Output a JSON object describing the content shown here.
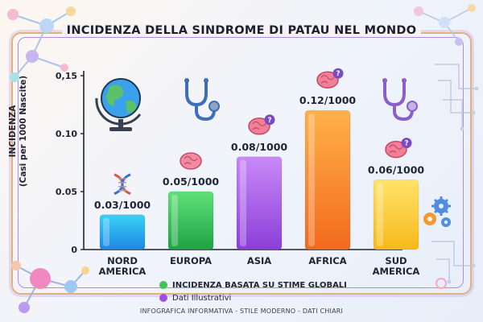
{
  "page": {
    "title": "INCIDENZA DELLA SINDROME DI PATAU NEL MONDO",
    "footer": "INFOGRAFICA INFORMATIVA - STILE MODERNO - DATI CHIARI"
  },
  "legend": {
    "items": [
      {
        "label": "INCIDENZA BASATA SU STIME GLOBALI",
        "color": "#3fc45a"
      },
      {
        "label": "Dati Illustrativi",
        "color": "#a24fe0"
      }
    ]
  },
  "chart_data": {
    "type": "bar",
    "title": "INCIDENZA DELLA SINDROME DI PATAU NEL MONDO",
    "ylabel": "INCIDENZA",
    "ylabel_sub": "(Casi per 1000 Nascite)",
    "xlabel": "",
    "ylim": [
      0,
      0.15
    ],
    "yticks": [
      0,
      0.05,
      0.1,
      0.15
    ],
    "ytick_labels": [
      "0",
      "0.05",
      "0.10",
      "0,15"
    ],
    "grid": false,
    "categories": [
      {
        "line1": "NORD",
        "line2": "AMERICA"
      },
      {
        "line1": "EUROPA",
        "line2": ""
      },
      {
        "line1": "ASIA",
        "line2": ""
      },
      {
        "line1": "AFRICA",
        "line2": ""
      },
      {
        "line1": "SUD",
        "line2": "AMERICA"
      }
    ],
    "values": [
      0.03,
      0.05,
      0.08,
      0.12,
      0.06
    ],
    "data_labels": [
      "0.03/1000",
      "0.05/1000",
      "0.08/1000",
      "0.12/1000",
      "0.06/1000"
    ],
    "bar_colors": [
      [
        "#3ad3f5",
        "#1c86e6"
      ],
      [
        "#5fe07a",
        "#1fa343"
      ],
      [
        "#c989f7",
        "#8b3fd9"
      ],
      [
        "#ffb04a",
        "#f36a1c"
      ],
      [
        "#ffe36a",
        "#f7b91a"
      ]
    ],
    "icons": [
      "dna-icon",
      "brain-icon",
      "brain-question-icon",
      "brain-question-icon",
      "brain-question-icon"
    ]
  },
  "decor_icons": [
    "globe-icon",
    "stethoscope-icon",
    "stethoscope-icon",
    "gears-icon",
    "molecule-icon",
    "circuit-icon"
  ]
}
